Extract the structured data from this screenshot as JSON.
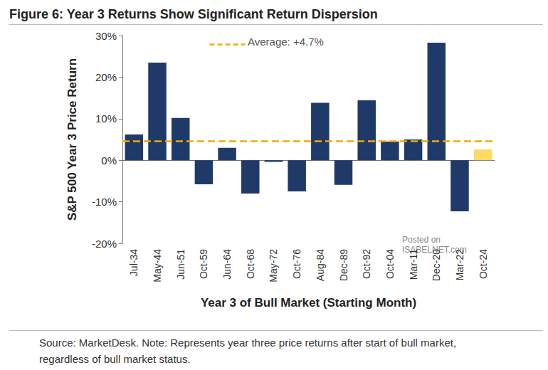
{
  "chart_data": {
    "type": "bar",
    "title": "Figure 6: Year 3 Returns Show Significant Return Dispersion",
    "y_label": "S&P 500 Year 3 Price Return",
    "x_label": "Year 3 of Bull Market (Starting Month)",
    "categories": [
      "Jul-34",
      "May-44",
      "Jun-51",
      "Oct-59",
      "Jun-64",
      "Oct-68",
      "May-72",
      "Oct-76",
      "Aug-84",
      "Dec-89",
      "Oct-92",
      "Oct-04",
      "Mar-11",
      "Dec-20",
      "Mar-22",
      "Oct-24"
    ],
    "values": [
      6.2,
      23.5,
      10.2,
      -5.8,
      3.0,
      -8.0,
      -0.4,
      -7.5,
      13.8,
      -5.9,
      14.4,
      4.5,
      5.0,
      28.3,
      -12.3,
      2.6
    ],
    "colors": [
      "#1f3a68",
      "#1f3a68",
      "#1f3a68",
      "#1f3a68",
      "#1f3a68",
      "#1f3a68",
      "#1f3a68",
      "#1f3a68",
      "#1f3a68",
      "#1f3a68",
      "#1f3a68",
      "#1f3a68",
      "#1f3a68",
      "#1f3a68",
      "#1f3a68",
      "#ffd966"
    ],
    "ylim": [
      -20,
      30
    ],
    "yticks": [
      {
        "value": -20,
        "label": "-20%"
      },
      {
        "value": -10,
        "label": "-10%"
      },
      {
        "value": 0,
        "label": "0%"
      },
      {
        "value": 10,
        "label": "10%"
      },
      {
        "value": 20,
        "label": "20%"
      },
      {
        "value": 30,
        "label": "30%"
      }
    ],
    "grid": false,
    "annotations": [
      {
        "text": "Average: +4.7%",
        "y": 4.7,
        "color": "#f5a800",
        "line_style": "dashed"
      }
    ],
    "source": "Source: MarketDesk. Note: Represents year three price returns after start of bull market, regardless of bull market status.",
    "watermark": [
      "Posted on",
      "ISABELNET.com"
    ]
  }
}
